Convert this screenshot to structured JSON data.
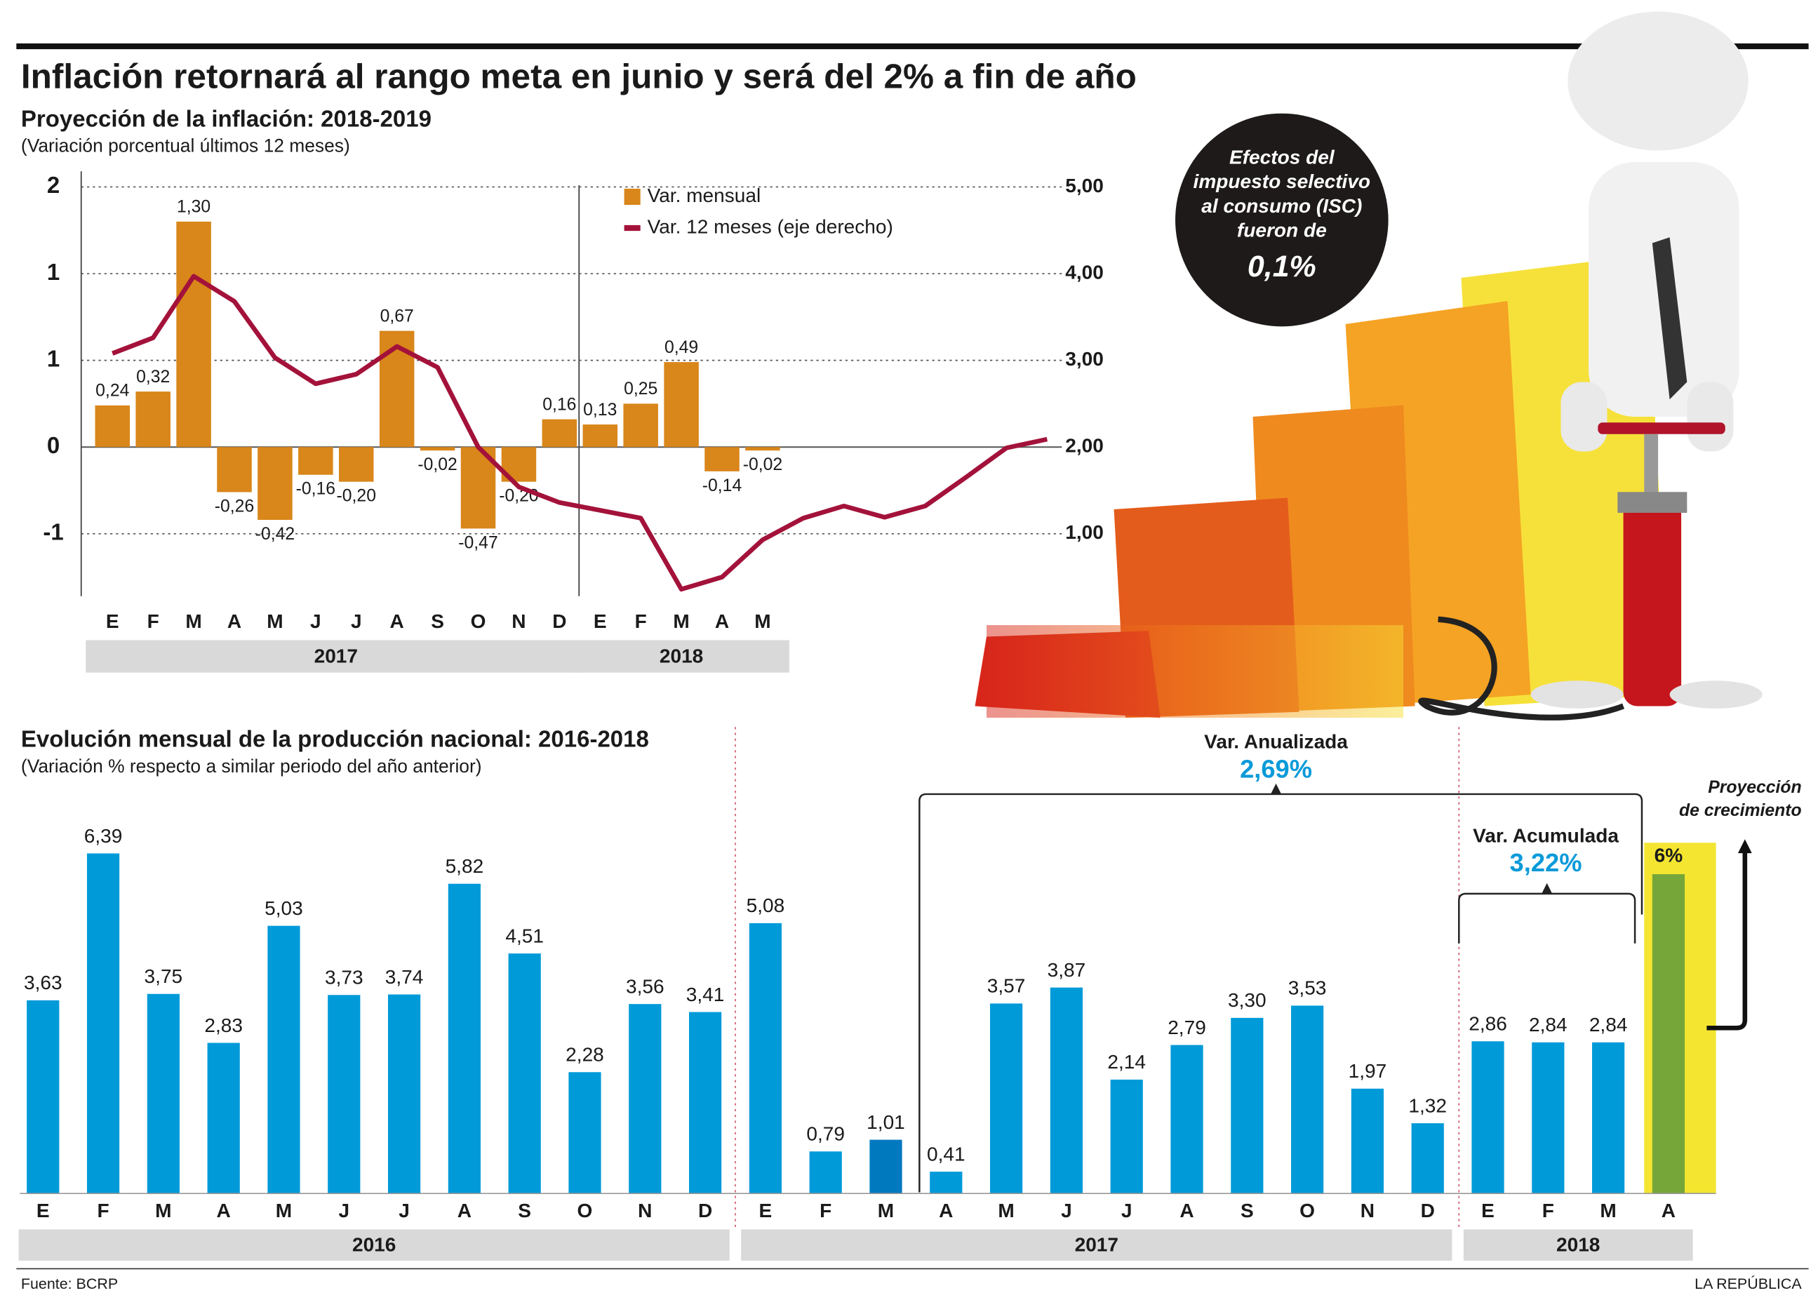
{
  "title": "Inflación retornará al rango meta en junio y será del 2% a fin de año",
  "callout": {
    "text": [
      "Efectos del",
      "impuesto selectivo",
      "al consumo (ISC)",
      "fueron de"
    ],
    "value": "0,1%"
  },
  "footer": {
    "source": "Fuente: BCRP",
    "brand": "LA REPÚBLICA"
  },
  "chart_data": [
    {
      "type": "bar",
      "title": "Proyección de la inflación: 2018-2019",
      "subtitle": "(Variación porcentual últimos 12 meses)",
      "categories": [
        "E",
        "F",
        "M",
        "A",
        "M",
        "J",
        "J",
        "A",
        "S",
        "O",
        "N",
        "D",
        "E",
        "F",
        "M",
        "A",
        "M",
        null,
        null,
        null,
        null,
        null,
        null,
        null
      ],
      "groups": [
        {
          "label": "2017",
          "span": 12
        },
        {
          "label": "2018",
          "span": 5
        }
      ],
      "series": [
        {
          "name": "Var. mensual",
          "color": "#d9861a",
          "values": [
            0.24,
            0.32,
            1.3,
            -0.26,
            -0.42,
            -0.16,
            -0.2,
            0.67,
            -0.02,
            -0.47,
            -0.2,
            0.16,
            0.13,
            0.25,
            0.49,
            -0.14,
            -0.02,
            null,
            null,
            null,
            null,
            null,
            null,
            null
          ],
          "value_labels": [
            "0,24",
            "0,32",
            "1,30",
            "-0,26",
            "-0,42",
            "-0,16",
            "-0,20",
            "0,67",
            "-0,02",
            "-0,47",
            "-0,20",
            "0,16",
            "0,13",
            "0,25",
            "0,49",
            "-0,14",
            "-0,02",
            null,
            null,
            null,
            null,
            null,
            null,
            null
          ]
        },
        {
          "name": "Var. 12 meses (eje derecho)",
          "color": "#a3123a",
          "type": "line",
          "axis": "y2",
          "values": [
            3.08,
            3.26,
            3.97,
            3.68,
            3.03,
            2.73,
            2.84,
            3.16,
            2.92,
            2.0,
            1.54,
            1.36,
            1.27,
            1.18,
            0.36,
            0.5,
            0.93,
            1.18,
            1.32,
            1.19,
            1.32,
            1.65,
            1.99,
            2.09
          ]
        }
      ],
      "ylim": [
        -0.86,
        1.59
      ],
      "yticks": [
        {
          "value": 1.5,
          "label": "2"
        },
        {
          "value": 1,
          "label": "1"
        },
        {
          "value": 0.5,
          "label": "1"
        },
        0,
        {
          "value": -0.5,
          "label": "-1"
        }
      ],
      "y2lim": [
        0.28,
        5.18
      ],
      "y2ticks": [
        {
          "value": 5,
          "label": "5,00"
        },
        {
          "value": 4,
          "label": "4,00"
        },
        {
          "value": 3,
          "label": "3,00"
        },
        {
          "value": 2,
          "label": "2,00"
        },
        {
          "value": 1,
          "label": "1,00"
        }
      ],
      "grid": true
    },
    {
      "type": "bar",
      "title": "Evolución mensual de la producción nacional: 2016-2018",
      "subtitle": "(Variación % respecto a similar periodo del año anterior)",
      "categories": [
        "E",
        "F",
        "M",
        "A",
        "M",
        "J",
        "J",
        "A",
        "S",
        "O",
        "N",
        "D",
        "E",
        "F",
        "M",
        "A",
        "M",
        "J",
        "J",
        "A",
        "S",
        "O",
        "N",
        "D",
        "E",
        "F",
        "M",
        "A"
      ],
      "groups": [
        {
          "label": "2016",
          "span": 12
        },
        {
          "label": "2017",
          "span": 12
        },
        {
          "label": "2018",
          "span": 4
        }
      ],
      "values": [
        3.63,
        6.39,
        3.75,
        2.83,
        5.03,
        3.73,
        3.74,
        5.82,
        4.51,
        2.28,
        3.56,
        3.41,
        5.08,
        0.79,
        1.01,
        0.41,
        3.57,
        3.87,
        2.14,
        2.79,
        3.3,
        3.53,
        1.97,
        1.32,
        2.86,
        2.84,
        2.84,
        6
      ],
      "value_labels": [
        "3,63",
        "6,39",
        "3,75",
        "2,83",
        "5,03",
        "3,73",
        "3,74",
        "5,82",
        "4,51",
        "2,28",
        "3,56",
        "3,41",
        "5,08",
        "0,79",
        "1,01",
        "0,41",
        "3,57",
        "3,87",
        "2,14",
        "2,79",
        "3,30",
        "3,53",
        "1,97",
        "1,32",
        "2,86",
        "2,84",
        "2,84",
        "6%"
      ],
      "colors": [
        "#009ad9",
        "#009ad9",
        "#009ad9",
        "#009ad9",
        "#009ad9",
        "#009ad9",
        "#009ad9",
        "#009ad9",
        "#009ad9",
        "#009ad9",
        "#009ad9",
        "#009ad9",
        "#009ad9",
        "#009ad9",
        "#0079bf",
        "#009ad9",
        "#009ad9",
        "#009ad9",
        "#009ad9",
        "#009ad9",
        "#009ad9",
        "#009ad9",
        "#009ad9",
        "#009ad9",
        "#009ad9",
        "#009ad9",
        "#009ad9",
        "#76a53a"
      ],
      "ylim": [
        0,
        7.2
      ],
      "annotations": [
        {
          "title": "Var. Anualizada",
          "value": "2,69%"
        },
        {
          "title": "Var. Acumulada",
          "value": "3,22%"
        },
        {
          "title": "Proyección",
          "subtitle": "de crecimiento"
        }
      ]
    }
  ]
}
